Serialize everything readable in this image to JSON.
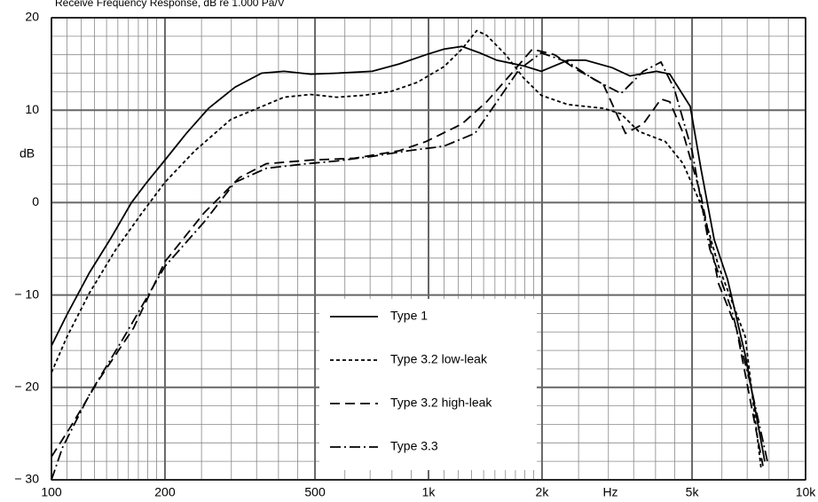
{
  "chart_data": {
    "type": "line",
    "title": "Receive Frequency Response, dB re 1.000 Pa/V",
    "xlabel": "Hz",
    "ylabel": "dB",
    "xscale": "log",
    "xlim": [
      100,
      10000
    ],
    "ylim": [
      -30,
      20
    ],
    "xticks": [
      100,
      200,
      500,
      {
        "value": 1000,
        "label": "1k"
      },
      {
        "value": 2000,
        "label": "2k"
      },
      {
        "value": 5000,
        "label": "5k"
      },
      {
        "value": 10000,
        "label": "10k"
      }
    ],
    "yticks": [
      {
        "value": -30,
        "label": "− 30"
      },
      {
        "value": -20,
        "label": "− 20"
      },
      {
        "value": -10,
        "label": "− 10"
      },
      0,
      10,
      20
    ],
    "minor_xticks": [
      110,
      120,
      130,
      140,
      150,
      160,
      170,
      180,
      190,
      250,
      300,
      350,
      400,
      450,
      600,
      700,
      800,
      900,
      1100,
      1200,
      1300,
      1400,
      1500,
      1600,
      1700,
      1800,
      1900,
      2500,
      3000,
      3500,
      4000,
      4500,
      6000,
      7000,
      8000,
      9000
    ],
    "minor_yticks": [
      -28,
      -26,
      -24,
      -22,
      -18,
      -16,
      -14,
      -12,
      -8,
      -6,
      -4,
      -2,
      2,
      4,
      6,
      8,
      12,
      14,
      16,
      18
    ],
    "grid": true,
    "legend_position": "lower center",
    "series": [
      {
        "name": "Type 1",
        "color": "#000000",
        "linestyle": "solid",
        "x": [
          100,
          110,
          126,
          144,
          163,
          179,
          200,
          228,
          261,
          307,
          361,
          414,
          487,
          571,
          709,
          836,
          985,
          1099,
          1226,
          1367,
          1518,
          1786,
          1990,
          2342,
          2609,
          3069,
          3421,
          4024,
          4365,
          4944,
          5277,
          5724,
          6208,
          6918,
          7795
        ],
        "values": [
          -15.5,
          -12.1,
          -7.6,
          -3.8,
          0.0,
          2.2,
          4.6,
          7.5,
          10.2,
          12.5,
          14.0,
          14.2,
          13.9,
          14.0,
          14.2,
          15.0,
          16.0,
          16.6,
          16.9,
          16.2,
          15.4,
          14.8,
          14.2,
          15.4,
          15.4,
          14.6,
          13.7,
          14.2,
          13.9,
          10.4,
          3.7,
          -4.0,
          -8.3,
          -16.5,
          -28.0
        ]
      },
      {
        "name": "Type 3.2 low-leak",
        "color": "#000000",
        "linestyle": "dotted",
        "x": [
          100,
          110,
          126,
          148,
          174,
          200,
          240,
          299,
          352,
          414,
          487,
          571,
          671,
          791,
          933,
          1099,
          1226,
          1342,
          1426,
          1602,
          1786,
          1990,
          2342,
          2907,
          3240,
          3611,
          4248,
          4735,
          5277,
          5882,
          6918,
          7627
        ],
        "values": [
          -18.4,
          -14.5,
          -9.8,
          -5.1,
          -1.1,
          2.2,
          5.6,
          9.0,
          10.2,
          11.4,
          11.7,
          11.4,
          11.6,
          12.0,
          13.0,
          14.7,
          16.6,
          18.6,
          18.1,
          16.0,
          13.5,
          11.6,
          10.6,
          10.2,
          9.6,
          7.7,
          6.6,
          4.2,
          -0.2,
          -6.9,
          -14.5,
          -28.9
        ]
      },
      {
        "name": "Type 3.2 high-leak",
        "color": "#000000",
        "linestyle": "dashed",
        "x": [
          100,
          113,
          133,
          165,
          200,
          254,
          315,
          371,
          487,
          636,
          836,
          985,
          1226,
          1426,
          1646,
          1885,
          2159,
          2472,
          2907,
          3330,
          3711,
          4135,
          4365,
          4735,
          5277,
          5882,
          6555,
          7710
        ],
        "values": [
          -27.5,
          -24.1,
          -19.3,
          -13.6,
          -6.4,
          -1.1,
          2.7,
          4.2,
          4.6,
          4.8,
          5.6,
          6.6,
          8.5,
          10.9,
          13.8,
          16.6,
          16.0,
          14.4,
          12.8,
          7.5,
          8.5,
          11.2,
          10.9,
          7.5,
          0.8,
          -8.8,
          -13.6,
          -28.5
        ]
      },
      {
        "name": "Type 3.3",
        "color": "#000000",
        "linestyle": "dashdot",
        "x": [
          100,
          107,
          126,
          156,
          200,
          254,
          307,
          371,
          474,
          571,
          709,
          883,
          1099,
          1328,
          1518,
          1738,
          1990,
          2342,
          2754,
          3240,
          3711,
          4135,
          4485,
          4998,
          5570,
          6379,
          7109,
          7923
        ],
        "values": [
          -30.0,
          -26.5,
          -20.8,
          -14.5,
          -6.9,
          -2.1,
          2.2,
          3.7,
          4.2,
          4.5,
          5.0,
          5.6,
          6.1,
          7.5,
          10.9,
          14.4,
          16.2,
          15.2,
          13.3,
          11.8,
          14.2,
          15.2,
          12.3,
          5.6,
          -5.0,
          -11.7,
          -19.3,
          -28.0
        ]
      }
    ]
  }
}
